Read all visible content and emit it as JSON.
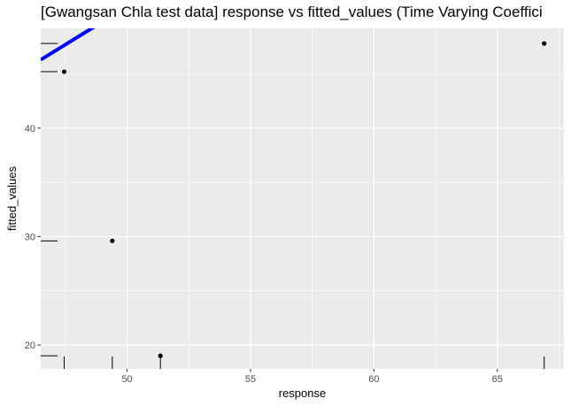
{
  "chart_data": {
    "type": "scatter",
    "title": "[Gwangsan Chla test data] response vs fitted_values (Time Varying Coeffici",
    "xlabel": "response",
    "ylabel": "fitted_values",
    "xlim": [
      46.5,
      67.7
    ],
    "ylim": [
      17.8,
      49.2
    ],
    "x_ticks": [
      50,
      55,
      60,
      65
    ],
    "y_ticks": [
      20,
      30,
      40
    ],
    "points": [
      {
        "x": 47.45,
        "y": 45.2
      },
      {
        "x": 49.4,
        "y": 29.6
      },
      {
        "x": 51.35,
        "y": 19.0
      },
      {
        "x": 66.9,
        "y": 47.8
      }
    ],
    "rug_x": [
      47.45,
      49.4,
      51.35,
      66.9
    ],
    "rug_y": [
      19.0,
      29.6,
      45.2,
      47.8
    ],
    "fit_line": {
      "x0": 46.5,
      "x1": 67.7,
      "slope": 1.4,
      "intercept": -18.8
    },
    "grid": true,
    "colors": {
      "panel_bg": "#ebebeb",
      "grid_major": "#ffffff",
      "fit_line": "#0000ff",
      "points": "#000000"
    }
  }
}
